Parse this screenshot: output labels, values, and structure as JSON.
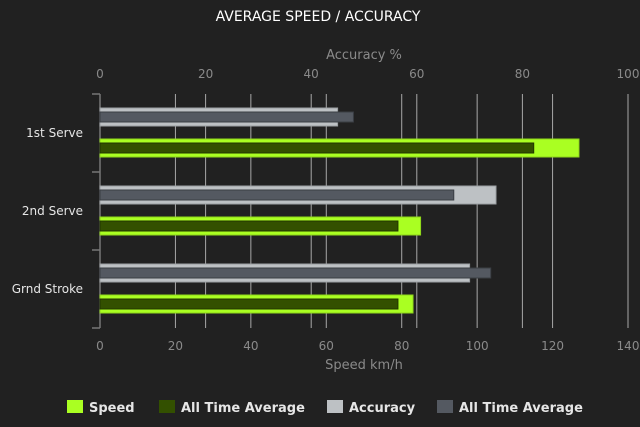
{
  "chart_data": {
    "type": "bar",
    "orientation": "horizontal",
    "title": "AVERAGE SPEED / ACCURACY",
    "categories": [
      "1st Serve",
      "2nd Serve",
      "Grnd Stroke"
    ],
    "x_axis_bottom": {
      "label": "Speed km/h",
      "range": [
        0,
        140
      ],
      "ticks": [
        0,
        20,
        40,
        60,
        80,
        100,
        120,
        140
      ]
    },
    "x_axis_top": {
      "label": "Accuracy %",
      "range": [
        0,
        100
      ],
      "ticks": [
        0,
        20,
        40,
        60,
        80,
        100
      ]
    },
    "grid": true,
    "legend_position": "bottom",
    "series": [
      {
        "name": "Speed",
        "axis": "bottom",
        "color": "#aaff22",
        "values": [
          127,
          85,
          83
        ]
      },
      {
        "name": "All Time Average",
        "axis": "bottom",
        "color": "#335000",
        "values": [
          115,
          79,
          79
        ]
      },
      {
        "name": "Accuracy",
        "axis": "top",
        "color": "#bdc1c4",
        "values": [
          45,
          75,
          70
        ]
      },
      {
        "name": "All Time Average",
        "axis": "top",
        "color": "#545961",
        "values": [
          48,
          67,
          74
        ]
      }
    ]
  }
}
